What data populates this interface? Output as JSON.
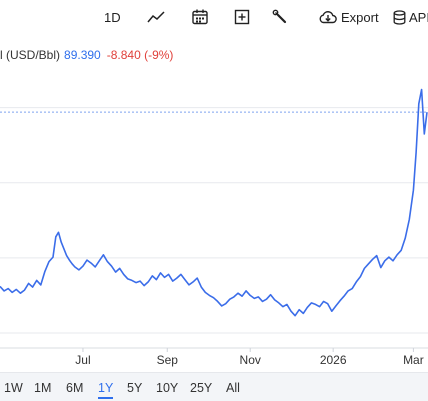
{
  "toolbar": {
    "interval_label": "1D",
    "export_label": "Export",
    "api_label": "API",
    "icons": [
      "line-chart-icon",
      "calendar-icon",
      "plus-box-icon",
      "wrench-icon",
      "cloud-download-icon",
      "database-icon"
    ]
  },
  "legend": {
    "name": "l (USD/Bbl)",
    "price": "89.390",
    "change": "-8.840 (-9%)",
    "price_color": "#2f6fec",
    "change_color": "#e0403a"
  },
  "ranges": {
    "items": [
      "1W",
      "1M",
      "6M",
      "1Y",
      "5Y",
      "10Y",
      "25Y",
      "All"
    ],
    "active": "1Y"
  },
  "chart_data": {
    "type": "line",
    "line_color": "#3b6de9",
    "reference_line": 89.39,
    "grid": "horizontal",
    "x_ticks": [
      "Jul",
      "Sep",
      "Nov",
      "2026",
      "Mar"
    ],
    "ylim": [
      58,
      95
    ],
    "x": [
      "2025-05-01",
      "2025-05-04",
      "2025-05-07",
      "2025-05-10",
      "2025-05-13",
      "2025-05-16",
      "2025-05-19",
      "2025-05-22",
      "2025-05-25",
      "2025-05-28",
      "2025-05-31",
      "2025-06-03",
      "2025-06-06",
      "2025-06-09",
      "2025-06-11",
      "2025-06-13",
      "2025-06-15",
      "2025-06-17",
      "2025-06-19",
      "2025-06-21",
      "2025-06-23",
      "2025-06-25",
      "2025-06-28",
      "2025-07-01",
      "2025-07-04",
      "2025-07-07",
      "2025-07-10",
      "2025-07-13",
      "2025-07-16",
      "2025-07-19",
      "2025-07-22",
      "2025-07-25",
      "2025-07-28",
      "2025-07-31",
      "2025-08-03",
      "2025-08-06",
      "2025-08-09",
      "2025-08-12",
      "2025-08-15",
      "2025-08-18",
      "2025-08-21",
      "2025-08-24",
      "2025-08-27",
      "2025-08-30",
      "2025-09-02",
      "2025-09-05",
      "2025-09-08",
      "2025-09-11",
      "2025-09-14",
      "2025-09-17",
      "2025-09-20",
      "2025-09-23",
      "2025-09-26",
      "2025-09-29",
      "2025-10-02",
      "2025-10-05",
      "2025-10-08",
      "2025-10-11",
      "2025-10-14",
      "2025-10-17",
      "2025-10-20",
      "2025-10-23",
      "2025-10-26",
      "2025-10-29",
      "2025-11-01",
      "2025-11-04",
      "2025-11-07",
      "2025-11-10",
      "2025-11-13",
      "2025-11-16",
      "2025-11-19",
      "2025-11-22",
      "2025-11-25",
      "2025-11-28",
      "2025-12-01",
      "2025-12-04",
      "2025-12-07",
      "2025-12-10",
      "2025-12-13",
      "2025-12-16",
      "2025-12-19",
      "2025-12-22",
      "2025-12-25",
      "2025-12-28",
      "2025-12-31",
      "2026-01-03",
      "2026-01-06",
      "2026-01-09",
      "2026-01-12",
      "2026-01-15",
      "2026-01-18",
      "2026-01-21",
      "2026-01-24",
      "2026-01-27",
      "2026-01-30",
      "2026-02-02",
      "2026-02-05",
      "2026-02-08",
      "2026-02-11",
      "2026-02-14",
      "2026-02-17",
      "2026-02-20",
      "2026-02-23",
      "2026-02-26",
      "2026-03-01",
      "2026-03-03",
      "2026-03-05",
      "2026-03-07",
      "2026-03-09",
      "2026-03-11"
    ],
    "y": [
      66.2,
      65.6,
      65.9,
      65.4,
      65.8,
      65.3,
      65.7,
      66.6,
      66.1,
      67.0,
      66.4,
      68.2,
      69.5,
      70.1,
      72.8,
      73.4,
      72.1,
      71.2,
      70.3,
      69.7,
      69.2,
      68.8,
      68.4,
      68.9,
      69.7,
      69.3,
      68.8,
      69.6,
      70.4,
      69.5,
      68.9,
      68.1,
      68.6,
      67.8,
      67.2,
      67.0,
      66.7,
      66.9,
      66.3,
      66.8,
      67.6,
      67.1,
      68.0,
      67.4,
      67.8,
      66.9,
      67.3,
      67.8,
      67.1,
      66.4,
      66.8,
      67.3,
      66.1,
      65.4,
      65.0,
      64.7,
      64.2,
      63.6,
      63.9,
      64.5,
      64.8,
      65.3,
      64.9,
      65.6,
      65.0,
      64.6,
      64.8,
      64.2,
      64.5,
      65.1,
      64.4,
      64.0,
      63.5,
      63.8,
      62.9,
      62.3,
      63.1,
      62.6,
      63.4,
      64.0,
      63.8,
      63.5,
      64.2,
      63.9,
      62.9,
      63.6,
      64.3,
      64.9,
      65.6,
      65.9,
      66.8,
      67.5,
      68.6,
      69.2,
      69.8,
      70.3,
      68.7,
      69.6,
      70.1,
      69.6,
      70.4,
      71.0,
      72.6,
      75.1,
      79.0,
      84.0,
      90.5,
      92.4,
      86.5,
      89.39
    ]
  }
}
